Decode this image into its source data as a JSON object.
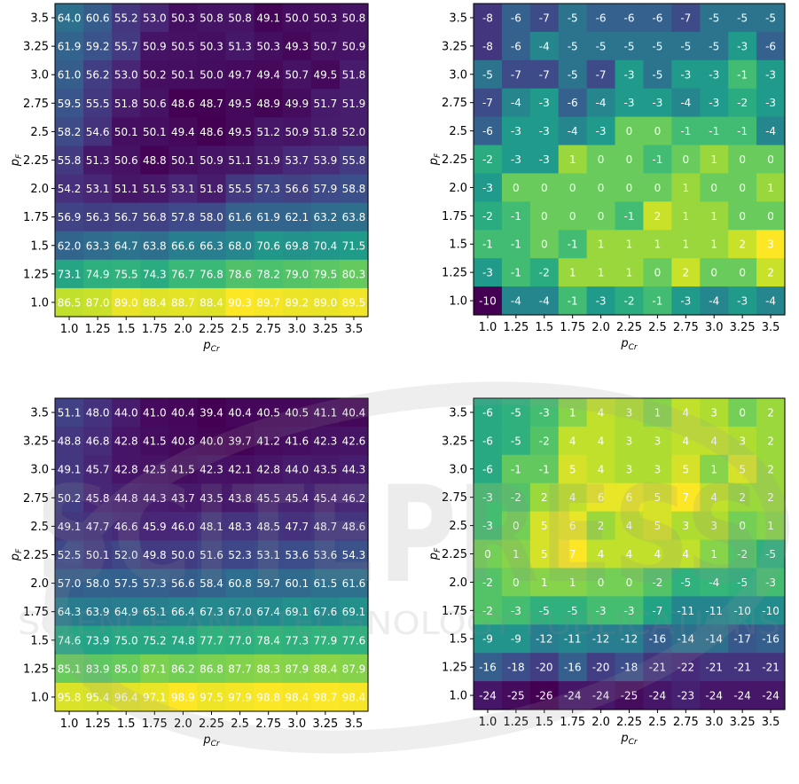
{
  "watermark": {
    "line1": "SCITEPRESS",
    "line2": "SCIENCE AND TECHNOLOGY PUBLICATIONS"
  },
  "chart_data": [
    {
      "type": "heatmap",
      "title": "",
      "xlabel": "p_Cr",
      "ylabel": "p_F",
      "x_ticks": [
        "1.0",
        "1.25",
        "1.5",
        "1.75",
        "2.0",
        "2.25",
        "2.5",
        "2.75",
        "3.0",
        "3.25",
        "3.5"
      ],
      "y_ticks": [
        "1.0",
        "1.25",
        "1.5",
        "1.75",
        "2.0",
        "2.25",
        "2.5",
        "2.75",
        "3.0",
        "3.25",
        "3.5"
      ],
      "colormap": "viridis",
      "value_format": "one_decimal",
      "rows_top_to_bottom": [
        [
          64.0,
          60.6,
          55.2,
          53.0,
          50.3,
          50.8,
          50.8,
          49.1,
          50.0,
          50.3,
          50.8
        ],
        [
          61.9,
          59.2,
          55.7,
          50.9,
          50.5,
          50.3,
          51.3,
          50.3,
          49.3,
          50.7,
          50.9
        ],
        [
          61.0,
          56.2,
          53.0,
          50.2,
          50.1,
          50.0,
          49.7,
          49.4,
          50.7,
          49.5,
          51.8
        ],
        [
          59.5,
          55.5,
          51.8,
          50.6,
          48.6,
          48.7,
          49.5,
          48.9,
          49.9,
          51.7,
          51.9
        ],
        [
          58.2,
          54.6,
          50.1,
          50.1,
          49.4,
          48.6,
          49.5,
          51.2,
          50.9,
          51.8,
          52.0
        ],
        [
          55.8,
          51.3,
          50.6,
          48.8,
          50.1,
          50.9,
          51.1,
          51.9,
          53.7,
          53.9,
          55.8
        ],
        [
          54.2,
          53.1,
          51.1,
          51.5,
          53.1,
          51.8,
          55.5,
          57.3,
          56.6,
          57.9,
          58.8
        ],
        [
          56.9,
          56.3,
          56.7,
          56.8,
          57.8,
          58.0,
          61.6,
          61.9,
          62.1,
          63.2,
          63.8
        ],
        [
          62.0,
          63.3,
          64.7,
          63.8,
          66.6,
          66.3,
          68.0,
          70.6,
          69.8,
          70.4,
          71.5
        ],
        [
          73.1,
          74.9,
          75.5,
          74.3,
          76.7,
          76.8,
          78.6,
          78.2,
          79.0,
          79.5,
          80.3
        ],
        [
          86.5,
          87.0,
          89.0,
          88.4,
          88.7,
          88.4,
          90.3,
          89.7,
          89.2,
          89.0,
          89.5
        ]
      ]
    },
    {
      "type": "heatmap",
      "title": "",
      "xlabel": "p_Cr",
      "ylabel": "p_F",
      "x_ticks": [
        "1.0",
        "1.25",
        "1.5",
        "1.75",
        "2.0",
        "2.25",
        "2.5",
        "2.75",
        "3.0",
        "3.25",
        "3.5"
      ],
      "y_ticks": [
        "1.0",
        "1.25",
        "1.5",
        "1.75",
        "2.0",
        "2.25",
        "2.5",
        "2.75",
        "3.0",
        "3.25",
        "3.5"
      ],
      "colormap": "viridis",
      "value_format": "integer",
      "rows_top_to_bottom": [
        [
          -8,
          -6,
          -7,
          -5,
          -6,
          -6,
          -6,
          -7,
          -5,
          -5,
          -5
        ],
        [
          -8,
          -6,
          -4,
          -5,
          -5,
          -5,
          -5,
          -5,
          -5,
          -3,
          -6
        ],
        [
          -5,
          -7,
          -7,
          -5,
          -7,
          -3,
          -5,
          -3,
          -3,
          -1,
          -3
        ],
        [
          -7,
          -4,
          -3,
          -6,
          -4,
          -3,
          -3,
          -4,
          -3,
          -2,
          -3
        ],
        [
          -6,
          -3,
          -3,
          -4,
          -3,
          0,
          0,
          -1,
          -1,
          -1,
          -4
        ],
        [
          -2,
          -3,
          -3,
          1,
          0,
          0,
          -1,
          0,
          1,
          0,
          0
        ],
        [
          -3,
          0,
          0,
          0,
          0,
          0,
          0,
          1,
          0,
          0,
          1
        ],
        [
          -2,
          -1,
          0,
          0,
          0,
          -1,
          2,
          1,
          1,
          0,
          0
        ],
        [
          -1,
          -1,
          0,
          -1,
          1,
          1,
          1,
          1,
          1,
          2,
          3
        ],
        [
          -3,
          -1,
          -2,
          1,
          1,
          1,
          0,
          2,
          0,
          0,
          2
        ],
        [
          -10,
          -4,
          -4,
          -1,
          -3,
          -2,
          -1,
          -3,
          -4,
          -3,
          -4
        ]
      ]
    },
    {
      "type": "heatmap",
      "title": "",
      "xlabel": "p_Cr",
      "ylabel": "p_F",
      "x_ticks": [
        "1.0",
        "1.25",
        "1.5",
        "1.75",
        "2.0",
        "2.25",
        "2.5",
        "2.75",
        "3.0",
        "3.25",
        "3.5"
      ],
      "y_ticks": [
        "1.0",
        "1.25",
        "1.5",
        "1.75",
        "2.0",
        "2.25",
        "2.5",
        "2.75",
        "3.0",
        "3.25",
        "3.5"
      ],
      "colormap": "viridis",
      "value_format": "one_decimal",
      "rows_top_to_bottom": [
        [
          51.1,
          48.0,
          44.0,
          41.0,
          40.4,
          39.4,
          40.4,
          40.5,
          40.5,
          41.1,
          40.4
        ],
        [
          48.8,
          46.8,
          42.8,
          41.5,
          40.8,
          40.0,
          39.7,
          41.2,
          41.6,
          42.3,
          42.6
        ],
        [
          49.1,
          45.7,
          42.8,
          42.5,
          41.5,
          42.3,
          42.1,
          42.8,
          44.0,
          43.5,
          44.3
        ],
        [
          50.2,
          45.8,
          44.8,
          44.3,
          43.7,
          43.5,
          43.8,
          45.5,
          45.4,
          45.4,
          46.2
        ],
        [
          49.1,
          47.7,
          46.6,
          45.9,
          46.0,
          48.1,
          48.3,
          48.5,
          47.7,
          48.7,
          48.6
        ],
        [
          52.5,
          50.1,
          52.0,
          49.8,
          50.0,
          51.6,
          52.3,
          53.1,
          53.6,
          53.6,
          54.3
        ],
        [
          57.0,
          58.0,
          57.5,
          57.3,
          56.6,
          58.4,
          60.8,
          59.7,
          60.1,
          61.5,
          61.6
        ],
        [
          64.3,
          63.9,
          64.9,
          65.1,
          66.4,
          67.3,
          67.0,
          67.4,
          69.1,
          67.6,
          69.1
        ],
        [
          74.6,
          73.9,
          75.0,
          75.2,
          74.8,
          77.7,
          77.0,
          78.4,
          77.3,
          77.9,
          77.6
        ],
        [
          85.1,
          83.9,
          85.0,
          87.1,
          86.2,
          86.8,
          87.7,
          88.3,
          87.9,
          88.4,
          87.9
        ],
        [
          95.8,
          95.4,
          96.4,
          97.1,
          98.9,
          97.5,
          97.9,
          98.8,
          98.4,
          98.7,
          98.4
        ]
      ]
    },
    {
      "type": "heatmap",
      "title": "",
      "xlabel": "p_Cr",
      "ylabel": "p_F",
      "x_ticks": [
        "1.0",
        "1.25",
        "1.5",
        "1.75",
        "2.0",
        "2.25",
        "2.5",
        "2.75",
        "3.0",
        "3.25",
        "3.5"
      ],
      "y_ticks": [
        "1.0",
        "1.25",
        "1.5",
        "1.75",
        "2.0",
        "2.25",
        "2.5",
        "2.75",
        "3.0",
        "3.25",
        "3.5"
      ],
      "colormap": "viridis",
      "value_format": "integer",
      "rows_top_to_bottom": [
        [
          -6,
          -5,
          -3,
          1,
          4,
          3,
          1,
          4,
          3,
          0,
          2
        ],
        [
          -6,
          -5,
          -2,
          4,
          4,
          3,
          3,
          4,
          4,
          3,
          2
        ],
        [
          -6,
          -1,
          -1,
          5,
          4,
          3,
          3,
          5,
          1,
          5,
          2
        ],
        [
          -3,
          -2,
          2,
          4,
          6,
          6,
          5,
          7,
          4,
          2,
          2
        ],
        [
          -3,
          0,
          5,
          6,
          2,
          4,
          5,
          3,
          3,
          0,
          1
        ],
        [
          0,
          1,
          5,
          7,
          4,
          4,
          4,
          4,
          1,
          -2,
          -5
        ],
        [
          -2,
          0,
          1,
          1,
          0,
          0,
          -2,
          -5,
          -4,
          -5,
          -3
        ],
        [
          -2,
          -3,
          -5,
          -5,
          -3,
          -3,
          -7,
          -11,
          -11,
          -10,
          -10
        ],
        [
          -9,
          -9,
          -12,
          -11,
          -12,
          -12,
          -16,
          -14,
          -14,
          -17,
          -16
        ],
        [
          -16,
          -18,
          -20,
          -16,
          -20,
          -18,
          -21,
          -22,
          -21,
          -21,
          -21
        ],
        [
          -24,
          -25,
          -26,
          -24,
          -24,
          -25,
          -24,
          -23,
          -24,
          -24,
          -24
        ]
      ]
    }
  ]
}
